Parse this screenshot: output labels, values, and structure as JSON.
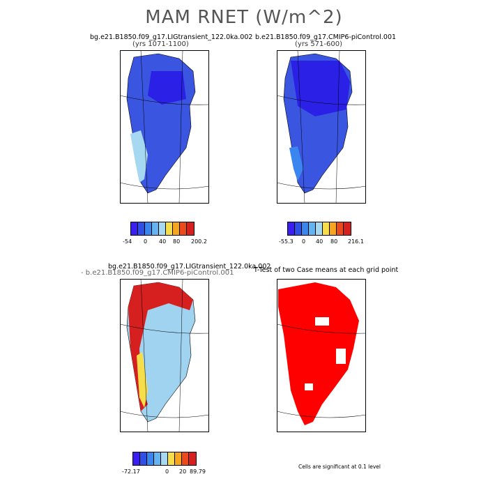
{
  "page": {
    "title": "MAM RNET (W/m^2)"
  },
  "panels": [
    {
      "title": "bg.e21.B1850.f09_g17.LIGtransient_122.0ka.002",
      "subtitle": "(yrs 1071-1100)",
      "fill_color": "#3a55e0",
      "colorbar": {
        "colors": [
          "#3b1ef0",
          "#2f4fe6",
          "#3a86ee",
          "#64b4f2",
          "#a6d8f2",
          "#f5de4a",
          "#f7a51e",
          "#ec4a1c",
          "#d62020"
        ],
        "labels": [
          "-54",
          "0",
          "40",
          "80",
          "200.2"
        ]
      }
    },
    {
      "title": "b.e21.B1850.f09_g17.CMIP6-piControl.001",
      "subtitle": "(yrs 571-600)",
      "fill_color": "#2b20e6",
      "colorbar": {
        "colors": [
          "#3b1ef0",
          "#2f4fe6",
          "#3a86ee",
          "#64b4f2",
          "#a6d8f2",
          "#f5de4a",
          "#f7a51e",
          "#ec4a1c",
          "#d62020"
        ],
        "labels": [
          "-55.3",
          "0",
          "40",
          "80",
          "216.1"
        ]
      }
    },
    {
      "title": "bg.e21.B1850.f09_g17.LIGtransient_122.0ka.002",
      "subtitle": "- b.e21.B1850.f09_g17.CMIP6-piControl.001",
      "fill_color": "#9fd3ef",
      "colorbar": {
        "colors": [
          "#3b1ef0",
          "#2f4fe6",
          "#3a86ee",
          "#64b4f2",
          "#a6d8f2",
          "#f5de4a",
          "#f7a51e",
          "#ec4a1c",
          "#d62020"
        ],
        "labels": [
          "-72.17",
          "0",
          "20",
          "89.79"
        ]
      }
    },
    {
      "title": "T-Test of two Case means at each grid point",
      "fill_color": "#ff0000"
    }
  ],
  "footnote": "Cells are significant at 0.1 level"
}
